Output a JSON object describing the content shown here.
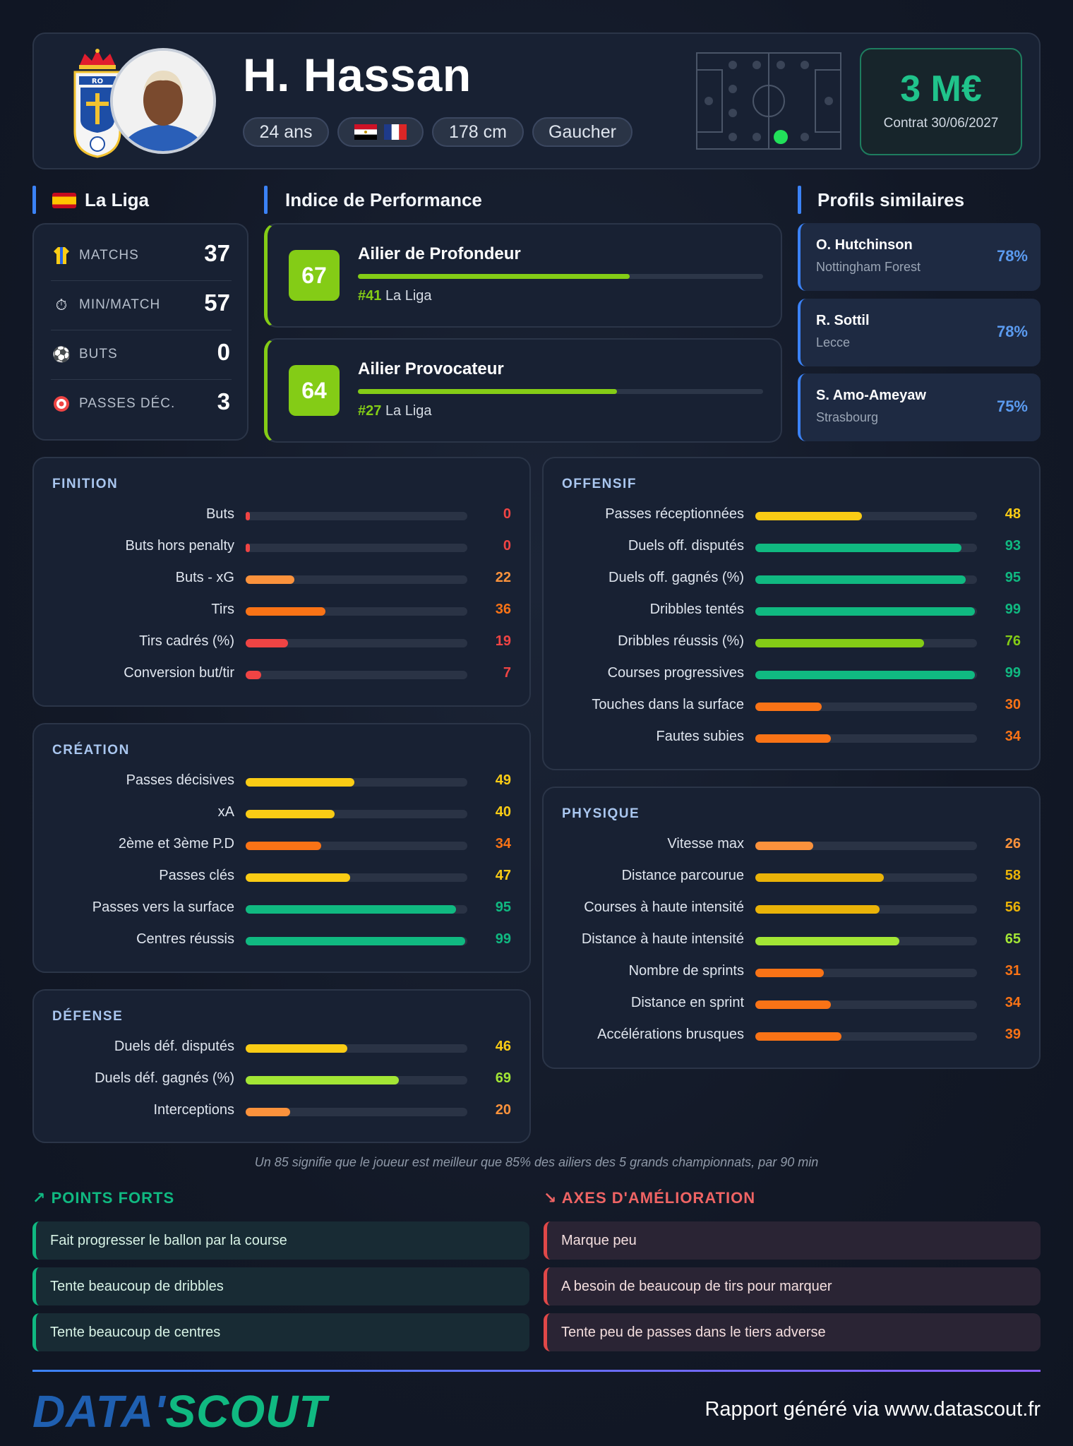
{
  "colors": {
    "accent_blue": "#3b82f6",
    "accent_green": "#10b981",
    "lime": "#84cc16",
    "bar_red": "#ef4444",
    "bar_orange": "#f97316",
    "bar_amber": "#fb923c",
    "bar_yellow": "#facc15",
    "bar_gold": "#eab308",
    "bar_yellowgreen": "#a3e635",
    "bar_emerald": "#10b981"
  },
  "header": {
    "player_name": "H. Hassan",
    "age": "24 ans",
    "flags": [
      "egypt-flag-icon",
      "france-flag-icon"
    ],
    "height": "178 cm",
    "foot": "Gaucher",
    "crest_icon": "club-crest-icon",
    "crest_letters": "RO",
    "market_value": "3 M€",
    "contract": "Contrat 30/06/2027",
    "position_map_icon": "pitch-position-icon"
  },
  "league": {
    "title": "La Liga",
    "flag_icon": "spain-flag-icon",
    "rows": [
      {
        "icon": "jersey-icon",
        "label": "MATCHS",
        "value": "37"
      },
      {
        "icon": "stopwatch-icon",
        "label": "MIN/MATCH",
        "value": "57"
      },
      {
        "icon": "ball-icon",
        "label": "BUTS",
        "value": "0"
      },
      {
        "icon": "target-icon",
        "label": "PASSES DÉC.",
        "value": "3"
      }
    ]
  },
  "performance": {
    "title": "Indice de Performance",
    "items": [
      {
        "score": "67",
        "title": "Ailier de Profondeur",
        "rank": "#41",
        "league": "La Liga",
        "fill": 0.67
      },
      {
        "score": "64",
        "title": "Ailier Provocateur",
        "rank": "#27",
        "league": "La Liga",
        "fill": 0.64
      }
    ]
  },
  "similar": {
    "title": "Profils similaires",
    "items": [
      {
        "name": "O. Hutchinson",
        "club": "Nottingham Forest",
        "pct": "78%"
      },
      {
        "name": "R. Sottil",
        "club": "Lecce",
        "pct": "78%"
      },
      {
        "name": "S. Amo-Ameyaw",
        "club": "Strasbourg",
        "pct": "75%"
      }
    ]
  },
  "panels": {
    "finition": {
      "title": "FINITION",
      "rows": [
        {
          "label": "Buts",
          "value": "0",
          "color": "#ef4444"
        },
        {
          "label": "Buts hors penalty",
          "value": "0",
          "color": "#ef4444"
        },
        {
          "label": "Buts - xG",
          "value": "22",
          "color": "#fb923c"
        },
        {
          "label": "Tirs",
          "value": "36",
          "color": "#f97316"
        },
        {
          "label": "Tirs cadrés (%)",
          "value": "19",
          "color": "#ef4444"
        },
        {
          "label": "Conversion but/tir",
          "value": "7",
          "color": "#ef4444"
        }
      ]
    },
    "creation": {
      "title": "CRÉATION",
      "rows": [
        {
          "label": "Passes décisives",
          "value": "49",
          "color": "#facc15"
        },
        {
          "label": "xA",
          "value": "40",
          "color": "#facc15"
        },
        {
          "label": "2ème et 3ème P.D",
          "value": "34",
          "color": "#f97316"
        },
        {
          "label": "Passes clés",
          "value": "47",
          "color": "#facc15"
        },
        {
          "label": "Passes vers la surface",
          "value": "95",
          "color": "#10b981"
        },
        {
          "label": "Centres réussis",
          "value": "99",
          "color": "#10b981"
        }
      ]
    },
    "defense": {
      "title": "DÉFENSE",
      "rows": [
        {
          "label": "Duels déf. disputés",
          "value": "46",
          "color": "#facc15"
        },
        {
          "label": "Duels déf. gagnés (%)",
          "value": "69",
          "color": "#a3e635"
        },
        {
          "label": "Interceptions",
          "value": "20",
          "color": "#fb923c"
        }
      ]
    },
    "offensif": {
      "title": "OFFENSIF",
      "rows": [
        {
          "label": "Passes réceptionnées",
          "value": "48",
          "color": "#facc15"
        },
        {
          "label": "Duels off. disputés",
          "value": "93",
          "color": "#10b981"
        },
        {
          "label": "Duels off. gagnés (%)",
          "value": "95",
          "color": "#10b981"
        },
        {
          "label": "Dribbles tentés",
          "value": "99",
          "color": "#10b981"
        },
        {
          "label": "Dribbles réussis (%)",
          "value": "76",
          "color": "#84cc16"
        },
        {
          "label": "Courses progressives",
          "value": "99",
          "color": "#10b981"
        },
        {
          "label": "Touches dans la surface",
          "value": "30",
          "color": "#f97316"
        },
        {
          "label": "Fautes subies",
          "value": "34",
          "color": "#f97316"
        }
      ]
    },
    "physique": {
      "title": "PHYSIQUE",
      "rows": [
        {
          "label": "Vitesse max",
          "value": "26",
          "color": "#fb923c"
        },
        {
          "label": "Distance parcourue",
          "value": "58",
          "color": "#eab308"
        },
        {
          "label": "Courses à haute intensité",
          "value": "56",
          "color": "#eab308"
        },
        {
          "label": "Distance à haute intensité",
          "value": "65",
          "color": "#a3e635"
        },
        {
          "label": "Nombre de sprints",
          "value": "31",
          "color": "#f97316"
        },
        {
          "label": "Distance en sprint",
          "value": "34",
          "color": "#f97316"
        },
        {
          "label": "Accélérations brusques",
          "value": "39",
          "color": "#f97316"
        }
      ]
    }
  },
  "footnote": "Un 85 signifie que le joueur est meilleur que 85% des ailiers des 5 grands championnats, par 90 min",
  "strengths": {
    "title": "POINTS FORTS",
    "icon": "trend-up-icon",
    "items": [
      "Fait progresser le ballon par la course",
      "Tente beaucoup de dribbles",
      "Tente beaucoup de centres"
    ]
  },
  "weaknesses": {
    "title": "AXES D'AMÉLIORATION",
    "icon": "trend-down-icon",
    "items": [
      "Marque peu",
      "A besoin de beaucoup de tirs pour marquer",
      "Tente peu de passes dans le tiers adverse"
    ]
  },
  "footer": {
    "logo_left": "DATA'",
    "logo_right": "SCOUT",
    "credit": "Rapport généré via www.datascout.fr"
  }
}
